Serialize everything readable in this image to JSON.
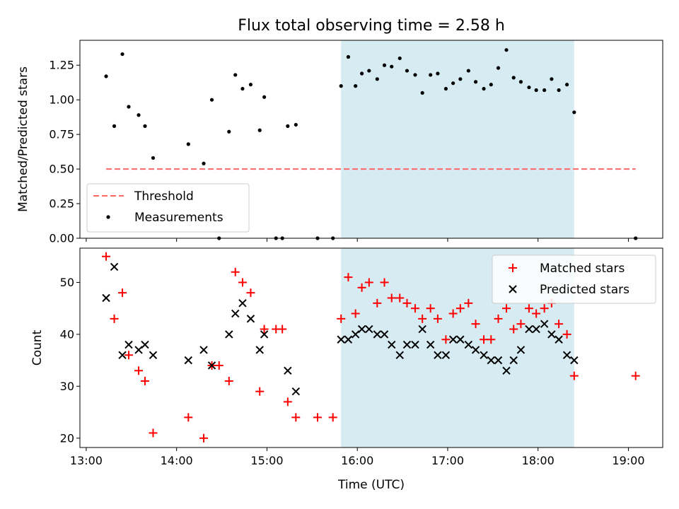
{
  "chart_data": [
    {
      "type": "scatter",
      "title": "Flux total observing time = 2.58 h",
      "ylabel": "Matched/Predicted stars",
      "ylim": [
        0,
        1.43
      ],
      "yticks": [
        "0.00",
        "0.25",
        "0.50",
        "0.75",
        "1.00",
        "1.25"
      ],
      "xlim_hours": [
        12.93,
        19.38
      ],
      "shaded_span_hours": [
        15.82,
        18.4
      ],
      "shaded_color": "#add8e6",
      "threshold": {
        "name": "Threshold",
        "value": 0.5,
        "x_start": 13.22,
        "x_end": 19.08,
        "color": "#ff6666"
      },
      "legend": [
        "Threshold",
        "Measurements"
      ],
      "legend_position": "lower-left",
      "series": [
        {
          "name": "Measurements",
          "color": "#000000",
          "points": [
            [
              13.22,
              1.17
            ],
            [
              13.31,
              0.81
            ],
            [
              13.4,
              1.33
            ],
            [
              13.47,
              0.95
            ],
            [
              13.58,
              0.89
            ],
            [
              13.65,
              0.81
            ],
            [
              13.74,
              0.58
            ],
            [
              14.13,
              0.68
            ],
            [
              14.3,
              0.54
            ],
            [
              14.39,
              1.0
            ],
            [
              14.47,
              0.0
            ],
            [
              14.58,
              0.77
            ],
            [
              14.65,
              1.18
            ],
            [
              14.73,
              1.08
            ],
            [
              14.82,
              1.11
            ],
            [
              14.92,
              0.78
            ],
            [
              14.97,
              1.02
            ],
            [
              15.1,
              0.0
            ],
            [
              15.17,
              0.0
            ],
            [
              15.23,
              0.81
            ],
            [
              15.32,
              0.82
            ],
            [
              15.56,
              0.0
            ],
            [
              15.73,
              0.0
            ],
            [
              15.82,
              1.1
            ],
            [
              15.9,
              1.31
            ],
            [
              15.98,
              1.1
            ],
            [
              16.05,
              1.19
            ],
            [
              16.13,
              1.21
            ],
            [
              16.22,
              1.15
            ],
            [
              16.3,
              1.25
            ],
            [
              16.38,
              1.24
            ],
            [
              16.47,
              1.3
            ],
            [
              16.55,
              1.21
            ],
            [
              16.64,
              1.18
            ],
            [
              16.72,
              1.05
            ],
            [
              16.81,
              1.18
            ],
            [
              16.89,
              1.19
            ],
            [
              16.98,
              1.08
            ],
            [
              17.06,
              1.12
            ],
            [
              17.14,
              1.15
            ],
            [
              17.23,
              1.21
            ],
            [
              17.31,
              1.13
            ],
            [
              17.4,
              1.08
            ],
            [
              17.48,
              1.11
            ],
            [
              17.56,
              1.23
            ],
            [
              17.65,
              1.36
            ],
            [
              17.73,
              1.16
            ],
            [
              17.81,
              1.13
            ],
            [
              17.9,
              1.09
            ],
            [
              17.98,
              1.07
            ],
            [
              18.07,
              1.07
            ],
            [
              18.15,
              1.15
            ],
            [
              18.23,
              1.07
            ],
            [
              18.32,
              1.11
            ],
            [
              18.4,
              0.91
            ],
            [
              19.08,
              0.0
            ]
          ]
        }
      ]
    },
    {
      "type": "scatter",
      "xlabel": "Time (UTC)",
      "ylabel": "Count",
      "ylim": [
        18.2,
        56.6
      ],
      "yticks": [
        "20",
        "30",
        "40",
        "50"
      ],
      "xticks": [
        "13:00",
        "14:00",
        "15:00",
        "16:00",
        "17:00",
        "18:00",
        "19:00"
      ],
      "xlim_hours": [
        12.93,
        19.38
      ],
      "shaded_span_hours": [
        15.82,
        18.4
      ],
      "shaded_color": "#add8e6",
      "legend_position": "top-right",
      "series": [
        {
          "name": "Matched stars",
          "marker": "plus",
          "color": "#ff0000",
          "points": [
            [
              13.22,
              55
            ],
            [
              13.31,
              43
            ],
            [
              13.4,
              48
            ],
            [
              13.47,
              36
            ],
            [
              13.58,
              33
            ],
            [
              13.65,
              31
            ],
            [
              13.74,
              21
            ],
            [
              14.13,
              24
            ],
            [
              14.3,
              20
            ],
            [
              14.39,
              34
            ],
            [
              14.47,
              34
            ],
            [
              14.58,
              31
            ],
            [
              14.65,
              52
            ],
            [
              14.73,
              50
            ],
            [
              14.82,
              48
            ],
            [
              14.92,
              29
            ],
            [
              14.97,
              41
            ],
            [
              15.1,
              41
            ],
            [
              15.17,
              41
            ],
            [
              15.23,
              27
            ],
            [
              15.32,
              24
            ],
            [
              15.56,
              24
            ],
            [
              15.73,
              24
            ],
            [
              15.82,
              43
            ],
            [
              15.9,
              51
            ],
            [
              15.98,
              44
            ],
            [
              16.05,
              49
            ],
            [
              16.13,
              50
            ],
            [
              16.22,
              46
            ],
            [
              16.3,
              50
            ],
            [
              16.38,
              47
            ],
            [
              16.47,
              47
            ],
            [
              16.55,
              46
            ],
            [
              16.64,
              45
            ],
            [
              16.72,
              43
            ],
            [
              16.81,
              45
            ],
            [
              16.89,
              43
            ],
            [
              16.98,
              39
            ],
            [
              17.06,
              44
            ],
            [
              17.14,
              45
            ],
            [
              17.23,
              46
            ],
            [
              17.31,
              42
            ],
            [
              17.4,
              39
            ],
            [
              17.48,
              39
            ],
            [
              17.56,
              43
            ],
            [
              17.65,
              45
            ],
            [
              17.73,
              41
            ],
            [
              17.81,
              42
            ],
            [
              17.9,
              45
            ],
            [
              17.98,
              44
            ],
            [
              18.07,
              45
            ],
            [
              18.15,
              46
            ],
            [
              18.23,
              42
            ],
            [
              18.32,
              40
            ],
            [
              18.4,
              32
            ],
            [
              19.08,
              32
            ]
          ]
        },
        {
          "name": "Predicted stars",
          "marker": "x",
          "color": "#000000",
          "points": [
            [
              13.22,
              47
            ],
            [
              13.31,
              53
            ],
            [
              13.4,
              36
            ],
            [
              13.47,
              38
            ],
            [
              13.58,
              37
            ],
            [
              13.65,
              38
            ],
            [
              13.74,
              36
            ],
            [
              14.13,
              35
            ],
            [
              14.3,
              37
            ],
            [
              14.39,
              34
            ],
            [
              14.58,
              40
            ],
            [
              14.65,
              44
            ],
            [
              14.73,
              46
            ],
            [
              14.82,
              43
            ],
            [
              14.92,
              37
            ],
            [
              14.97,
              40
            ],
            [
              15.23,
              33
            ],
            [
              15.32,
              29
            ],
            [
              15.82,
              39
            ],
            [
              15.9,
              39
            ],
            [
              15.98,
              40
            ],
            [
              16.05,
              41
            ],
            [
              16.13,
              41
            ],
            [
              16.22,
              40
            ],
            [
              16.3,
              40
            ],
            [
              16.38,
              38
            ],
            [
              16.47,
              36
            ],
            [
              16.55,
              38
            ],
            [
              16.64,
              38
            ],
            [
              16.72,
              41
            ],
            [
              16.81,
              38
            ],
            [
              16.89,
              36
            ],
            [
              16.98,
              36
            ],
            [
              17.06,
              39
            ],
            [
              17.14,
              39
            ],
            [
              17.23,
              38
            ],
            [
              17.31,
              37
            ],
            [
              17.4,
              36
            ],
            [
              17.48,
              35
            ],
            [
              17.56,
              35
            ],
            [
              17.65,
              33
            ],
            [
              17.73,
              35
            ],
            [
              17.81,
              37
            ],
            [
              17.9,
              41
            ],
            [
              17.98,
              41
            ],
            [
              18.07,
              42
            ],
            [
              18.15,
              40
            ],
            [
              18.23,
              39
            ],
            [
              18.32,
              36
            ],
            [
              18.4,
              35
            ]
          ]
        }
      ]
    }
  ]
}
